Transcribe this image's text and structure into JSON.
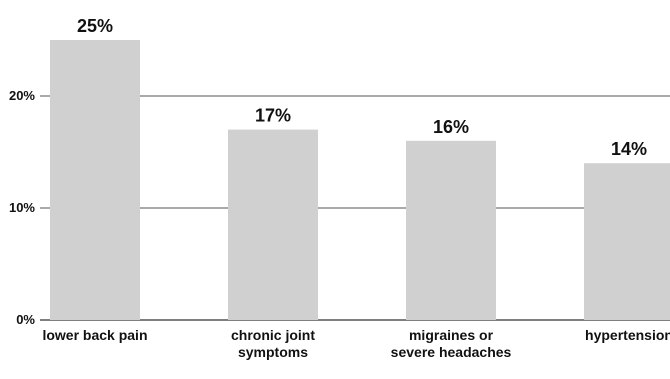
{
  "chart_data": {
    "type": "bar",
    "categories": [
      [
        "lower back pain"
      ],
      [
        "chronic joint",
        "symptoms"
      ],
      [
        "migraines or",
        "severe headaches"
      ],
      [
        "hypertension"
      ]
    ],
    "values": [
      25,
      17,
      16,
      14
    ],
    "value_labels": [
      "25%",
      "17%",
      "16%",
      "14%"
    ],
    "ylim": [
      0,
      25
    ],
    "yticks": [
      0,
      10,
      20
    ],
    "ytick_labels": [
      "0%",
      "10%",
      "20%"
    ],
    "grid": true,
    "bar_color": "#d0d0d0",
    "grid_color": "#555555",
    "text_color": "#111111",
    "title": "",
    "xlabel": "",
    "ylabel": ""
  }
}
